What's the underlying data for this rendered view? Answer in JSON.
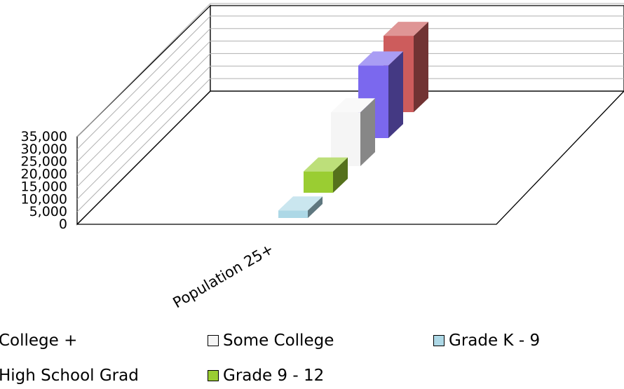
{
  "chart_data": {
    "type": "bar",
    "style": "3d",
    "categories": [
      "Population 25+"
    ],
    "series": [
      {
        "name": "Grade K - 9",
        "values": [
          3000
        ],
        "color": "#add8e6"
      },
      {
        "name": "Grade 9 - 12",
        "values": [
          8500
        ],
        "color": "#9acd32"
      },
      {
        "name": "Some College",
        "values": [
          21500
        ],
        "color": "#f5f5f5"
      },
      {
        "name": "High School Grad",
        "values": [
          29000
        ],
        "color": "#7b68ee"
      },
      {
        "name": "College +",
        "values": [
          30500
        ],
        "color": "#cd5c5c"
      }
    ],
    "y_ticks": [
      "0",
      "5,000",
      "10,000",
      "15,000",
      "20,000",
      "25,000",
      "30,000",
      "35,000"
    ],
    "ylim": [
      0,
      35000
    ],
    "grid": true,
    "legend": {
      "position": "bottom",
      "items": [
        "College +",
        "Some College",
        "Grade K - 9",
        "High School Grad",
        "Grade 9 - 12"
      ]
    }
  }
}
